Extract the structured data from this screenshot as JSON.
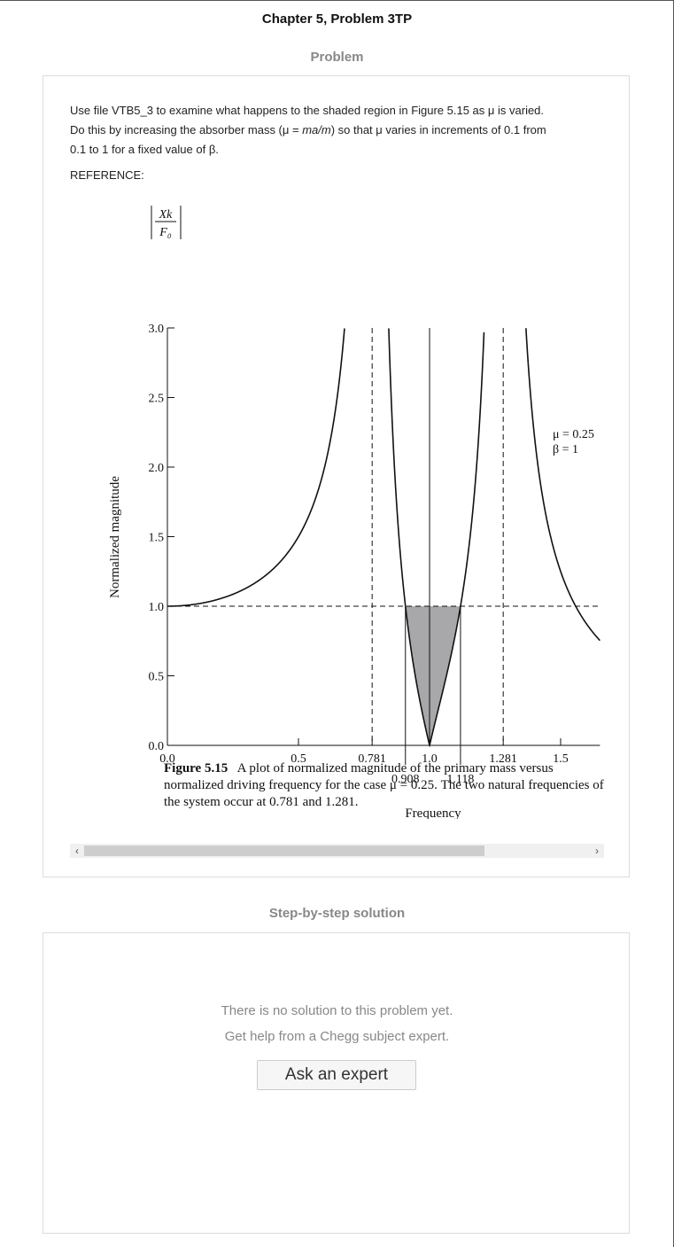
{
  "page": {
    "chapter_title": "Chapter 5, Problem 3TP",
    "problem_heading": "Problem",
    "solution_heading": "Step-by-step solution"
  },
  "problem": {
    "line1": "Use file VTB5_3 to examine what happens to the shaded region in Figure 5.15 as μ is varied.",
    "line2_a": "Do this by increasing the absorber mass (μ = ",
    "line2_italic": "ma/m",
    "line2_b": ") so that μ varies in increments of 0.1 from",
    "line3": "0.1 to 1 for a fixed value of β.",
    "reference_label": "REFERENCE:"
  },
  "figure": {
    "ylabel_num": "Xk",
    "ylabel_den": "F₀",
    "ylabel_side": "Normalized magnitude",
    "xlabel": "Frequency",
    "y_ticks": [
      "3.0",
      "2.5",
      "2.0",
      "1.5",
      "1.0",
      "0.5",
      "0.0"
    ],
    "x_ticks": [
      "0.0",
      "0.5",
      "0.781",
      "1.0",
      "1.281",
      "1.5"
    ],
    "x_ticks_low": [
      "0.908",
      "1.118"
    ],
    "param_mu": "μ = 0.25",
    "param_beta": "β = 1",
    "caption_label": "Figure 5.15",
    "caption_line1": "A plot of normalized magnitude of the primary mass versus",
    "caption_line2": "normalized driving frequency for the case μ = 0.25. The two natural frequencies of",
    "caption_line3": "the system occur at 0.781 and 1.281."
  },
  "chart_data": {
    "type": "line",
    "series": [
      {
        "mu": 0.25,
        "beta": 1
      }
    ],
    "x_range": [
      0,
      1.65
    ],
    "y_range": [
      0,
      3.0
    ],
    "natural_frequencies": [
      0.781,
      1.281
    ],
    "shaded_region": {
      "x": [
        0.908,
        1.118
      ],
      "y_max": 1.0
    },
    "reference_line_y": 1.0,
    "xlabel": "Frequency",
    "ylabel": "Normalized magnitude",
    "grid": false
  },
  "solution": {
    "message1": "There is no solution to this problem yet.",
    "message2": "Get help from a Chegg subject expert.",
    "ask_button_label": "Ask an expert"
  },
  "colors": {
    "shade": "#a8a8aa",
    "heading_gray": "#888888",
    "border": "#dcdcdc"
  }
}
